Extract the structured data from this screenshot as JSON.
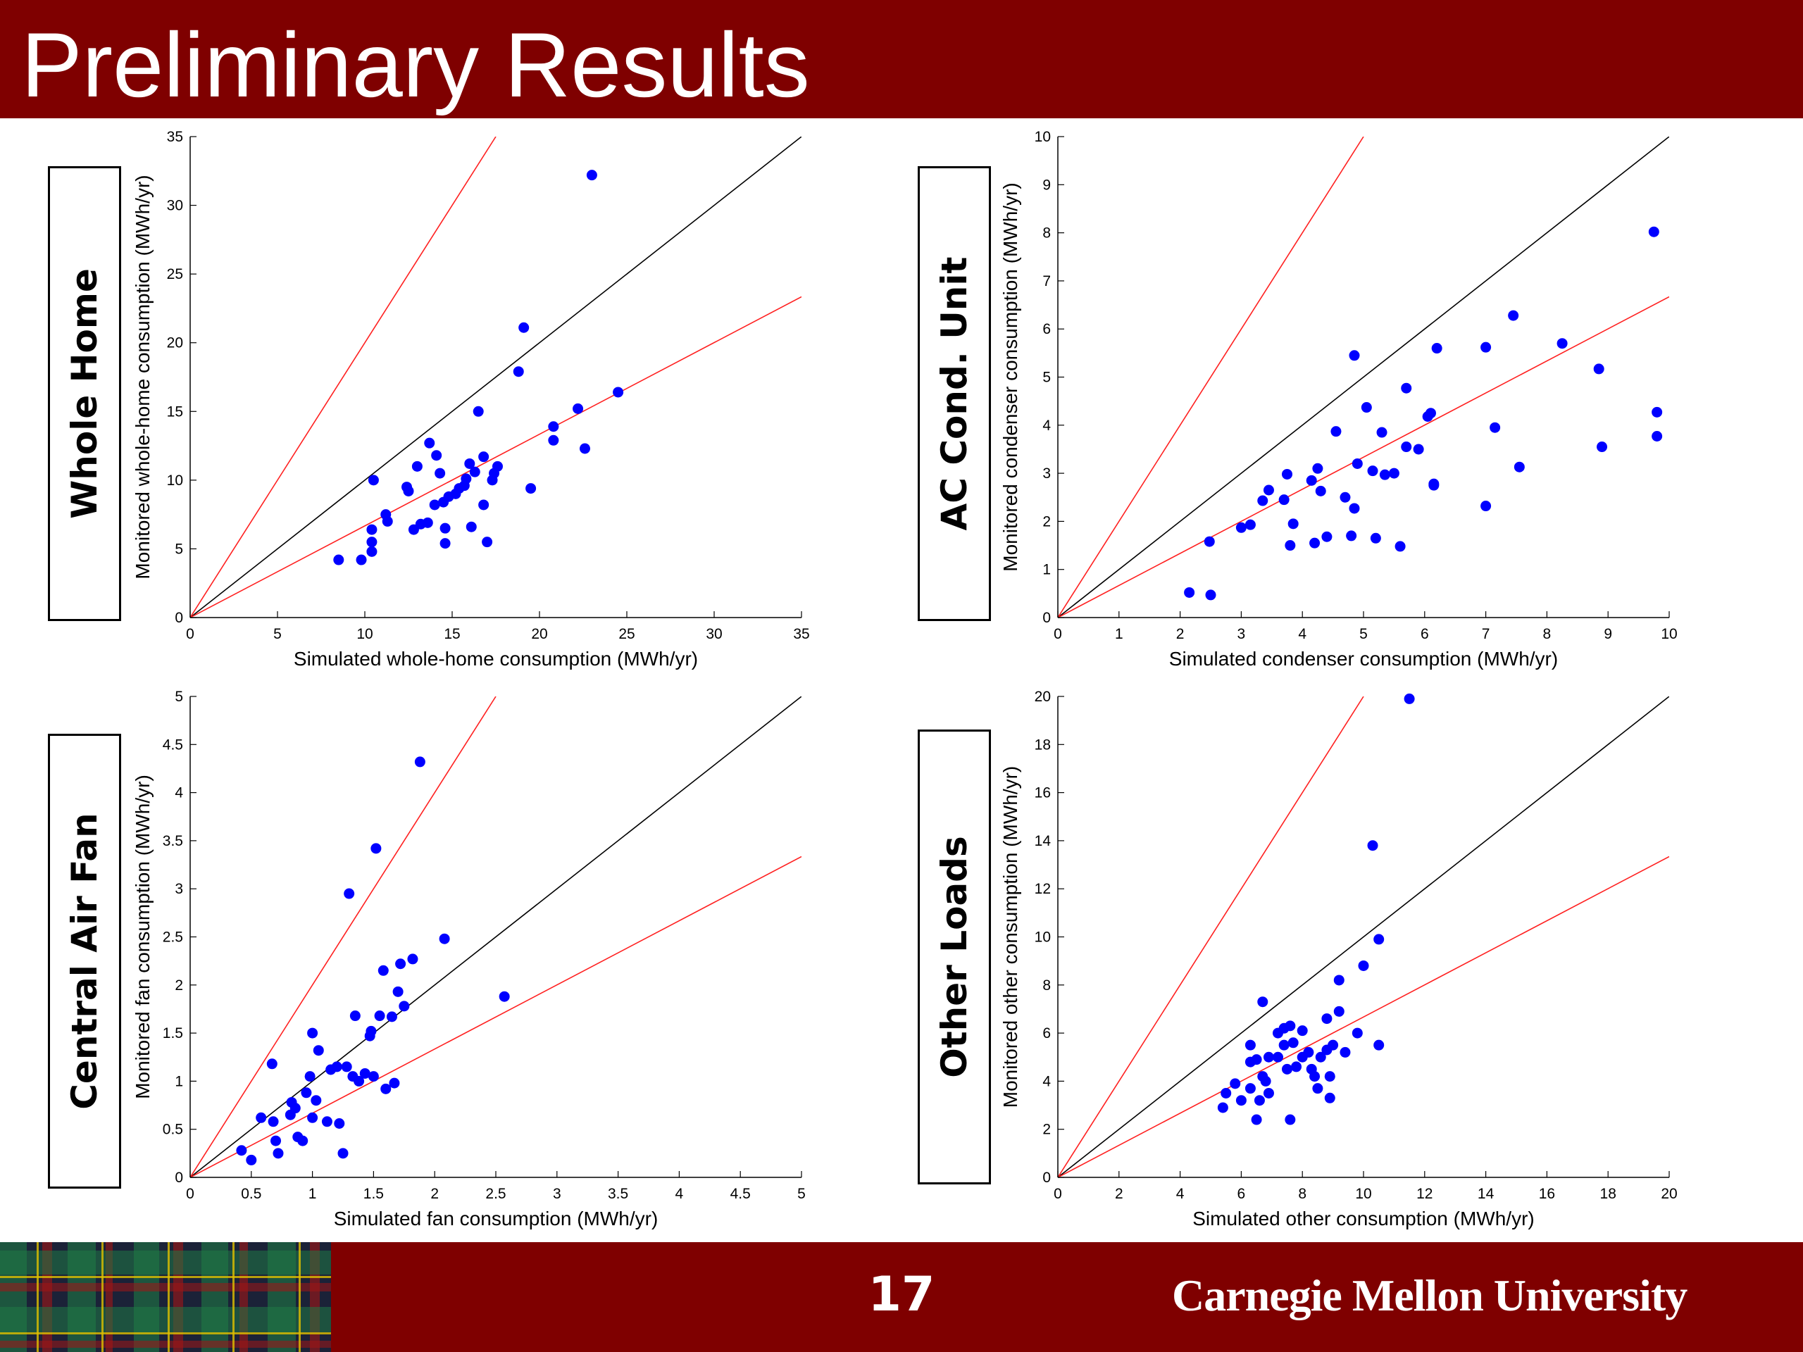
{
  "slide": {
    "title": "Preliminary Results",
    "page_number": "17",
    "university": "Carnegie Mellon University"
  },
  "colors": {
    "banner": "#7f0000",
    "points": "#0000ff",
    "reference_line": "#000000",
    "bound_lines": "#ff2020",
    "tartan_dark": "#1b2238",
    "tartan_green": "#1f7a45",
    "tartan_red": "#a31515",
    "tartan_yellow": "#e0c000"
  },
  "chart_data": [
    {
      "type": "scatter",
      "panel_label": "Whole Home",
      "xlabel": "Simulated whole-home consumption (MWh/yr)",
      "ylabel": "Monitored whole-home consumption (MWh/yr)",
      "xlim": [
        0,
        35
      ],
      "ylim": [
        0,
        35
      ],
      "xticks": [
        "0",
        "5",
        "10",
        "15",
        "20",
        "25",
        "30",
        "35"
      ],
      "yticks": [
        "0",
        "5",
        "10",
        "15",
        "20",
        "25",
        "30",
        "35"
      ],
      "grid": false,
      "reference_lines": [
        {
          "color": "black",
          "slope": 1.0
        },
        {
          "color": "red",
          "slope": 2.0
        },
        {
          "color": "red",
          "slope": 0.667
        }
      ],
      "points": [
        [
          8.5,
          4.2
        ],
        [
          9.8,
          4.2
        ],
        [
          10.4,
          4.8
        ],
        [
          10.4,
          5.5
        ],
        [
          10.4,
          6.4
        ],
        [
          10.5,
          10.0
        ],
        [
          11.2,
          7.5
        ],
        [
          11.3,
          7.0
        ],
        [
          12.4,
          9.5
        ],
        [
          12.5,
          9.2
        ],
        [
          12.8,
          6.4
        ],
        [
          13.0,
          11.0
        ],
        [
          13.2,
          6.8
        ],
        [
          13.6,
          6.9
        ],
        [
          13.7,
          12.7
        ],
        [
          14.0,
          8.2
        ],
        [
          14.1,
          11.8
        ],
        [
          14.3,
          10.5
        ],
        [
          14.5,
          8.4
        ],
        [
          14.6,
          6.5
        ],
        [
          14.6,
          5.4
        ],
        [
          14.8,
          8.8
        ],
        [
          15.2,
          9.0
        ],
        [
          15.4,
          9.4
        ],
        [
          15.7,
          9.6
        ],
        [
          15.8,
          10.1
        ],
        [
          16.0,
          11.2
        ],
        [
          16.1,
          6.6
        ],
        [
          16.3,
          10.6
        ],
        [
          16.5,
          15.0
        ],
        [
          16.8,
          11.7
        ],
        [
          16.8,
          8.2
        ],
        [
          17.0,
          5.5
        ],
        [
          17.3,
          10.0
        ],
        [
          17.4,
          10.5
        ],
        [
          17.6,
          11.0
        ],
        [
          18.8,
          17.9
        ],
        [
          19.1,
          21.1
        ],
        [
          19.5,
          9.4
        ],
        [
          20.8,
          13.9
        ],
        [
          20.8,
          12.9
        ],
        [
          22.2,
          15.2
        ],
        [
          22.6,
          12.3
        ],
        [
          23.0,
          32.2
        ],
        [
          24.5,
          16.4
        ]
      ]
    },
    {
      "type": "scatter",
      "panel_label": "AC Cond. Unit",
      "xlabel": "Simulated condenser consumption (MWh/yr)",
      "ylabel": "Monitored condenser consumption (MWh/yr)",
      "xlim": [
        0,
        10
      ],
      "ylim": [
        0,
        10
      ],
      "xticks": [
        "0",
        "1",
        "2",
        "3",
        "4",
        "5",
        "6",
        "7",
        "8",
        "9",
        "10"
      ],
      "yticks": [
        "0",
        "1",
        "2",
        "3",
        "4",
        "5",
        "6",
        "7",
        "8",
        "9",
        "10"
      ],
      "grid": false,
      "reference_lines": [
        {
          "color": "black",
          "slope": 1.0
        },
        {
          "color": "red",
          "slope": 2.0
        },
        {
          "color": "red",
          "slope": 0.667
        }
      ],
      "points": [
        [
          2.15,
          0.52
        ],
        [
          2.5,
          0.47
        ],
        [
          2.48,
          1.58
        ],
        [
          3.0,
          1.87
        ],
        [
          3.15,
          1.93
        ],
        [
          3.35,
          2.43
        ],
        [
          3.45,
          2.65
        ],
        [
          3.7,
          2.45
        ],
        [
          3.75,
          2.98
        ],
        [
          3.8,
          1.5
        ],
        [
          3.85,
          1.95
        ],
        [
          4.15,
          2.85
        ],
        [
          4.2,
          1.55
        ],
        [
          4.25,
          3.1
        ],
        [
          4.3,
          2.63
        ],
        [
          4.4,
          1.68
        ],
        [
          4.55,
          3.87
        ],
        [
          4.7,
          2.5
        ],
        [
          4.8,
          1.7
        ],
        [
          4.85,
          5.45
        ],
        [
          4.85,
          2.27
        ],
        [
          4.9,
          3.2
        ],
        [
          5.05,
          4.37
        ],
        [
          5.15,
          3.05
        ],
        [
          5.2,
          1.65
        ],
        [
          5.3,
          3.85
        ],
        [
          5.35,
          2.97
        ],
        [
          5.5,
          3.0
        ],
        [
          5.6,
          1.48
        ],
        [
          5.7,
          3.55
        ],
        [
          5.7,
          4.77
        ],
        [
          5.9,
          3.5
        ],
        [
          6.05,
          4.18
        ],
        [
          6.1,
          4.25
        ],
        [
          6.15,
          2.78
        ],
        [
          6.15,
          2.75
        ],
        [
          6.2,
          5.6
        ],
        [
          7.0,
          5.62
        ],
        [
          7.0,
          2.32
        ],
        [
          7.15,
          3.95
        ],
        [
          7.45,
          6.28
        ],
        [
          7.55,
          3.13
        ],
        [
          8.25,
          5.7
        ],
        [
          8.85,
          5.17
        ],
        [
          8.9,
          3.55
        ],
        [
          9.75,
          8.02
        ],
        [
          9.8,
          4.27
        ],
        [
          9.8,
          3.77
        ]
      ]
    },
    {
      "type": "scatter",
      "panel_label": "Central Air Fan",
      "xlabel": "Simulated fan consumption (MWh/yr)",
      "ylabel": "Monitored fan consumption (MWh/yr)",
      "xlim": [
        0,
        5
      ],
      "ylim": [
        0,
        5
      ],
      "xticks": [
        "0",
        "0.5",
        "1",
        "1.5",
        "2",
        "2.5",
        "3",
        "3.5",
        "4",
        "4.5",
        "5"
      ],
      "yticks": [
        "0",
        "0.5",
        "1",
        "1.5",
        "2",
        "2.5",
        "3",
        "3.5",
        "4",
        "4.5",
        "5"
      ],
      "grid": false,
      "reference_lines": [
        {
          "color": "black",
          "slope": 1.0
        },
        {
          "color": "red",
          "slope": 2.0
        },
        {
          "color": "red",
          "slope": 0.667
        }
      ],
      "points": [
        [
          0.42,
          0.28
        ],
        [
          0.5,
          0.18
        ],
        [
          0.58,
          0.62
        ],
        [
          0.67,
          1.18
        ],
        [
          0.68,
          0.58
        ],
        [
          0.7,
          0.38
        ],
        [
          0.72,
          0.25
        ],
        [
          0.82,
          0.65
        ],
        [
          0.83,
          0.78
        ],
        [
          0.86,
          0.72
        ],
        [
          0.88,
          0.42
        ],
        [
          0.92,
          0.38
        ],
        [
          0.95,
          0.88
        ],
        [
          0.98,
          1.05
        ],
        [
          1.0,
          1.5
        ],
        [
          1.0,
          0.62
        ],
        [
          1.03,
          0.8
        ],
        [
          1.05,
          1.32
        ],
        [
          1.12,
          0.58
        ],
        [
          1.15,
          1.12
        ],
        [
          1.2,
          1.15
        ],
        [
          1.22,
          0.56
        ],
        [
          1.25,
          0.25
        ],
        [
          1.28,
          1.15
        ],
        [
          1.3,
          2.95
        ],
        [
          1.33,
          1.05
        ],
        [
          1.35,
          1.68
        ],
        [
          1.38,
          1.0
        ],
        [
          1.43,
          1.08
        ],
        [
          1.47,
          1.47
        ],
        [
          1.48,
          1.52
        ],
        [
          1.5,
          1.05
        ],
        [
          1.52,
          3.42
        ],
        [
          1.55,
          1.68
        ],
        [
          1.58,
          2.15
        ],
        [
          1.6,
          0.92
        ],
        [
          1.65,
          1.67
        ],
        [
          1.67,
          0.98
        ],
        [
          1.7,
          1.93
        ],
        [
          1.72,
          2.22
        ],
        [
          1.75,
          1.78
        ],
        [
          1.82,
          2.27
        ],
        [
          1.88,
          4.32
        ],
        [
          2.08,
          2.48
        ],
        [
          2.57,
          1.88
        ]
      ]
    },
    {
      "type": "scatter",
      "panel_label": "Other Loads",
      "xlabel": "Simulated other consumption (MWh/yr)",
      "ylabel": "Monitored other consumption (MWh/yr)",
      "xlim": [
        0,
        20
      ],
      "ylim": [
        0,
        20
      ],
      "xticks": [
        "0",
        "2",
        "4",
        "6",
        "8",
        "10",
        "12",
        "14",
        "16",
        "18",
        "20"
      ],
      "yticks": [
        "0",
        "2",
        "4",
        "6",
        "8",
        "10",
        "12",
        "14",
        "16",
        "18",
        "20"
      ],
      "grid": false,
      "reference_lines": [
        {
          "color": "black",
          "slope": 1.0
        },
        {
          "color": "red",
          "slope": 2.0
        },
        {
          "color": "red",
          "slope": 0.667
        }
      ],
      "points": [
        [
          5.4,
          2.9
        ],
        [
          5.5,
          3.5
        ],
        [
          5.8,
          3.9
        ],
        [
          6.0,
          3.2
        ],
        [
          6.3,
          3.7
        ],
        [
          6.3,
          5.5
        ],
        [
          6.3,
          4.8
        ],
        [
          6.5,
          2.4
        ],
        [
          6.5,
          4.9
        ],
        [
          6.6,
          3.2
        ],
        [
          6.7,
          4.2
        ],
        [
          6.7,
          7.3
        ],
        [
          6.8,
          4.0
        ],
        [
          6.9,
          5.0
        ],
        [
          6.9,
          3.5
        ],
        [
          7.2,
          5.0
        ],
        [
          7.2,
          6.0
        ],
        [
          7.4,
          5.5
        ],
        [
          7.4,
          6.2
        ],
        [
          7.5,
          4.5
        ],
        [
          7.6,
          2.4
        ],
        [
          7.6,
          6.3
        ],
        [
          7.7,
          5.6
        ],
        [
          7.8,
          4.6
        ],
        [
          8.0,
          6.1
        ],
        [
          8.0,
          5.0
        ],
        [
          8.2,
          5.2
        ],
        [
          8.3,
          4.5
        ],
        [
          8.4,
          4.2
        ],
        [
          8.5,
          3.7
        ],
        [
          8.6,
          5.0
        ],
        [
          8.8,
          6.6
        ],
        [
          8.8,
          5.3
        ],
        [
          8.9,
          4.2
        ],
        [
          8.9,
          3.3
        ],
        [
          9.0,
          5.5
        ],
        [
          9.2,
          6.9
        ],
        [
          9.2,
          8.2
        ],
        [
          9.4,
          5.2
        ],
        [
          9.8,
          6.0
        ],
        [
          10.0,
          8.8
        ],
        [
          10.3,
          13.8
        ],
        [
          10.5,
          9.9
        ],
        [
          10.5,
          5.5
        ],
        [
          11.5,
          19.9
        ]
      ]
    }
  ]
}
